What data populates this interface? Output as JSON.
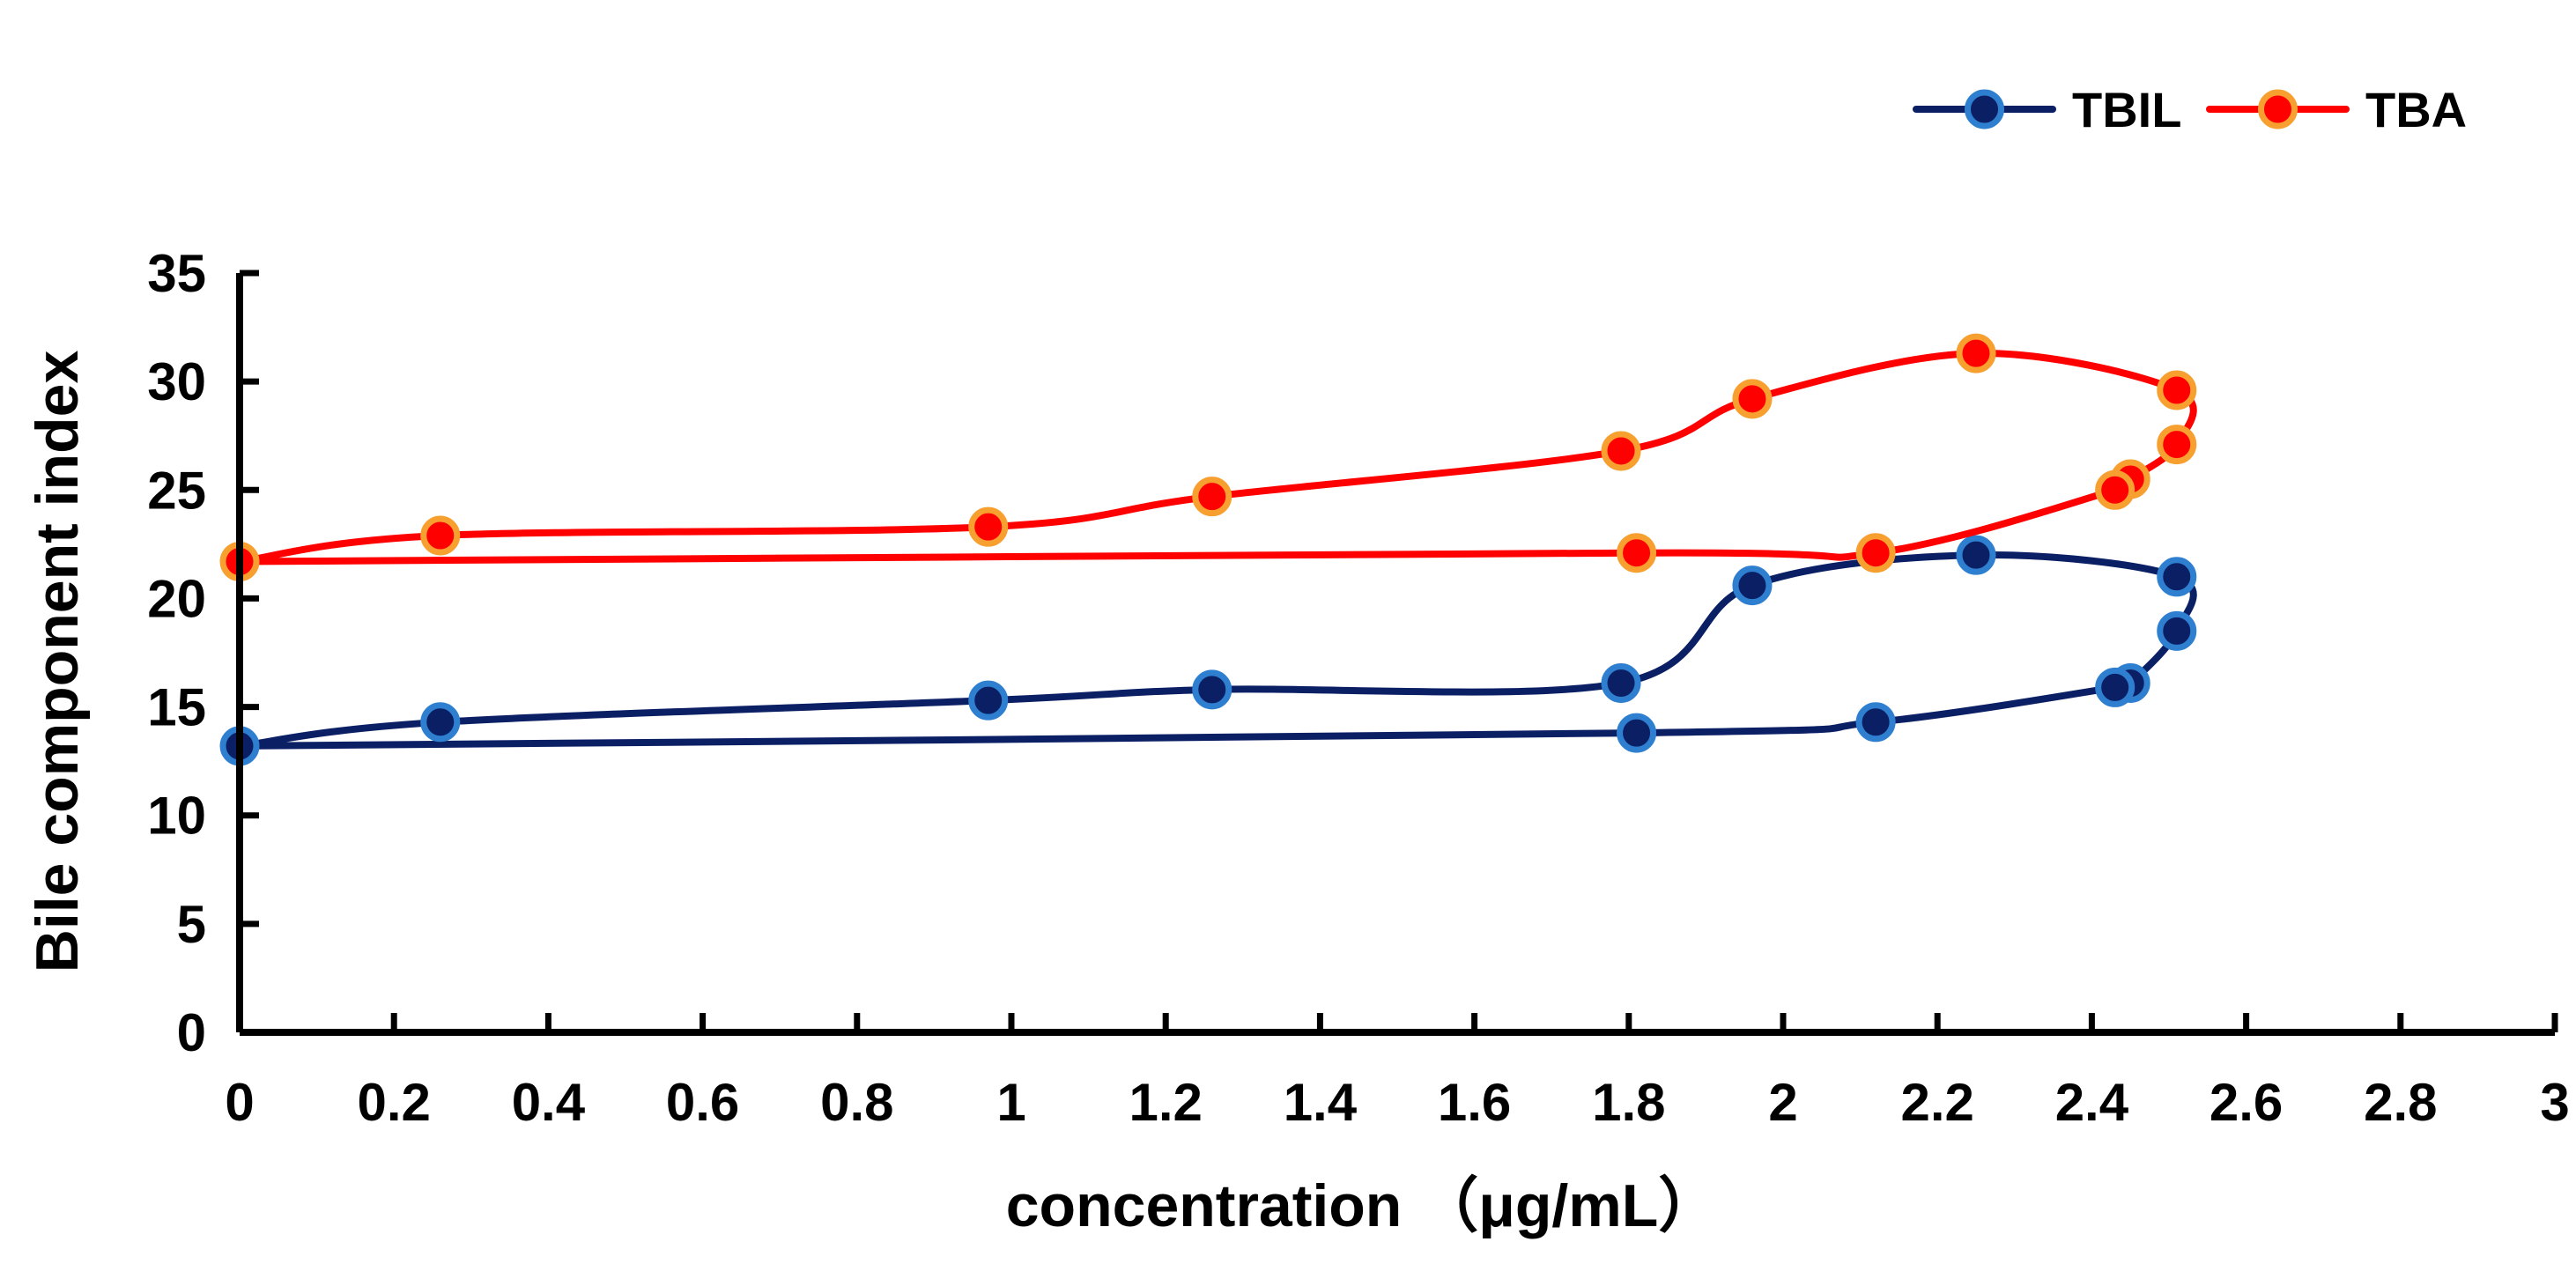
{
  "chart_data": {
    "type": "scatter",
    "xlabel": "concentration （μg/mL）",
    "ylabel": "Bile component index",
    "xlim": [
      0,
      3
    ],
    "ylim": [
      0,
      35
    ],
    "x_ticks": [
      "0",
      "0.2",
      "0.4",
      "0.6",
      "0.8",
      "1",
      "1.2",
      "1.4",
      "1.6",
      "1.8",
      "2",
      "2.2",
      "2.4",
      "2.6",
      "2.8",
      "3"
    ],
    "y_ticks": [
      "0",
      "5",
      "10",
      "15",
      "20",
      "25",
      "30",
      "35"
    ],
    "grid": false,
    "legend_position": "top-right",
    "smooth_lines": true,
    "series": [
      {
        "name": "TBIL",
        "line_color": "#0b1f64",
        "marker_fill": "#0b1f64",
        "marker_edge": "#2f7fd0",
        "points": [
          {
            "x": 0,
            "y": 13.2
          },
          {
            "x": 0.26,
            "y": 14.3
          },
          {
            "x": 0.97,
            "y": 15.3
          },
          {
            "x": 1.26,
            "y": 15.8
          },
          {
            "x": 1.79,
            "y": 16.1
          },
          {
            "x": 1.96,
            "y": 20.6
          },
          {
            "x": 2.25,
            "y": 22.0
          },
          {
            "x": 2.51,
            "y": 21.0
          },
          {
            "x": 2.51,
            "y": 18.5
          },
          {
            "x": 2.45,
            "y": 16.1
          },
          {
            "x": 2.43,
            "y": 15.9
          },
          {
            "x": 2.12,
            "y": 14.3
          },
          {
            "x": 1.81,
            "y": 13.8
          },
          {
            "x": 0,
            "y": 13.2
          }
        ]
      },
      {
        "name": "TBA",
        "line_color": "#ff0000",
        "marker_fill": "#ff0000",
        "marker_edge": "#f7a030",
        "points": [
          {
            "x": 0,
            "y": 21.7
          },
          {
            "x": 0.26,
            "y": 22.9
          },
          {
            "x": 0.97,
            "y": 23.3
          },
          {
            "x": 1.26,
            "y": 24.7
          },
          {
            "x": 1.79,
            "y": 26.8
          },
          {
            "x": 1.96,
            "y": 29.2
          },
          {
            "x": 2.25,
            "y": 31.3
          },
          {
            "x": 2.51,
            "y": 29.6
          },
          {
            "x": 2.51,
            "y": 27.1
          },
          {
            "x": 2.45,
            "y": 25.5
          },
          {
            "x": 2.43,
            "y": 25.0
          },
          {
            "x": 2.12,
            "y": 22.1
          },
          {
            "x": 1.81,
            "y": 22.1
          },
          {
            "x": 0,
            "y": 21.7
          }
        ]
      }
    ]
  }
}
